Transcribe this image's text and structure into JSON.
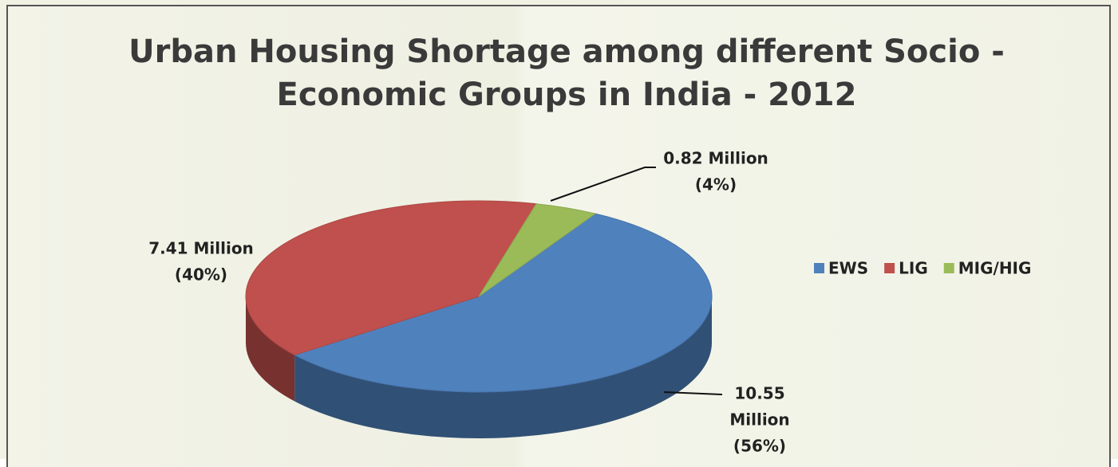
{
  "chart_data": {
    "type": "pie",
    "title": "Urban Housing Shortage among different Socio - Economic Groups in India - 2012",
    "categories": [
      "EWS",
      "LIG",
      "MIG/HIG"
    ],
    "values": [
      10.55,
      7.41,
      0.82
    ],
    "value_labels": [
      [
        "10.55",
        "Million",
        "(56%)"
      ],
      [
        "7.41 Million",
        "(40%)"
      ],
      [
        "0.82 Million",
        "(4%)"
      ]
    ],
    "colors": [
      "#4f81bd",
      "#c0504d",
      "#9bbb59"
    ],
    "legend": "right"
  }
}
